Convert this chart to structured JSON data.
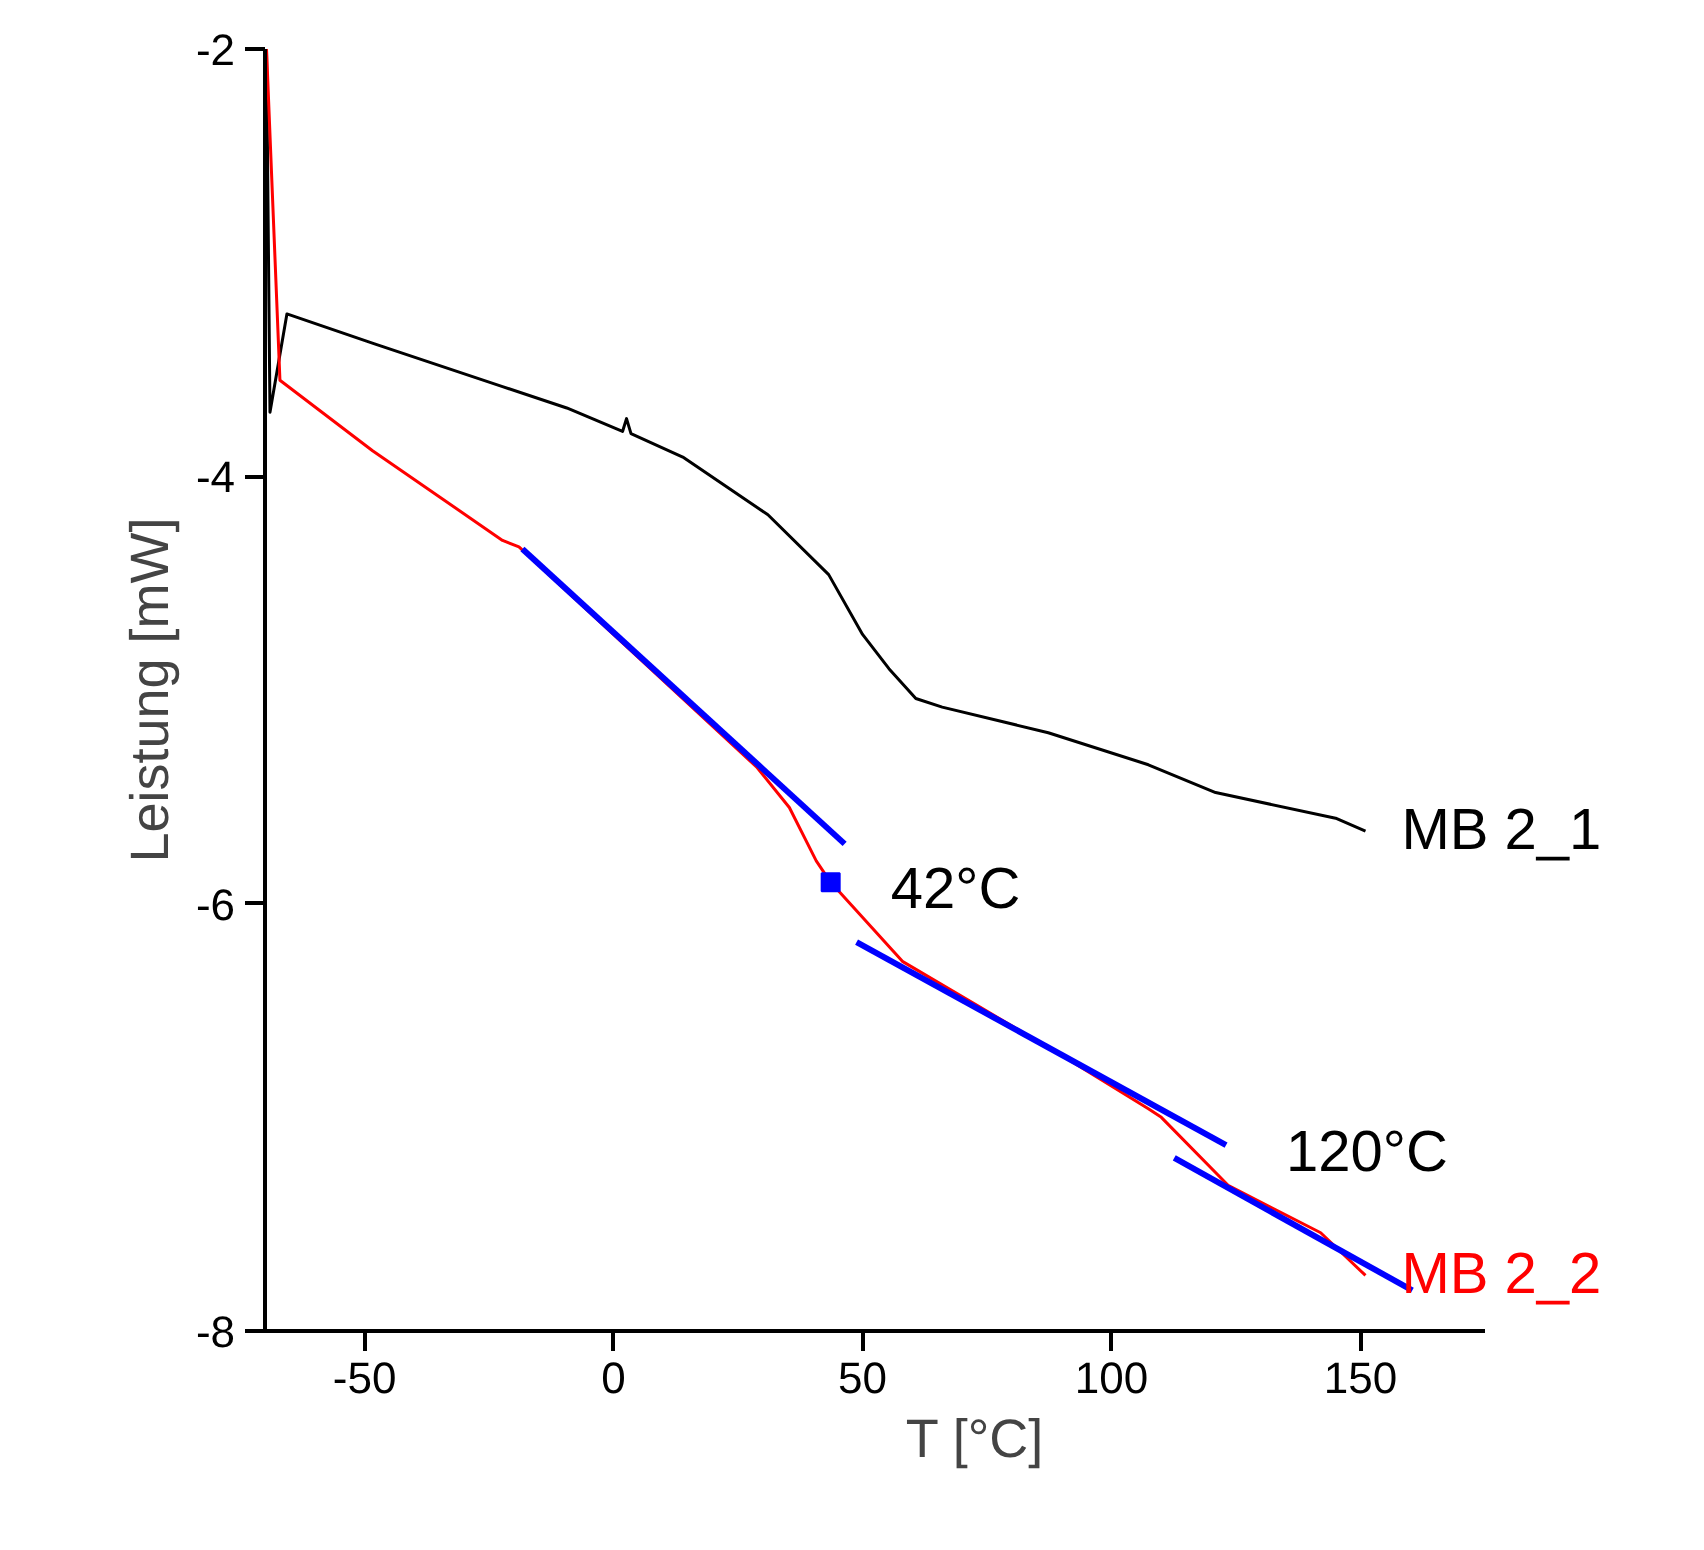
{
  "chart_data": {
    "type": "line",
    "xlabel": "T [°C]",
    "ylabel": "Leistung [mW]",
    "xlim": [
      -70,
      175
    ],
    "ylim": [
      -8,
      -2
    ],
    "xticks": [
      -50,
      0,
      50,
      100,
      150
    ],
    "yticks": [
      -8,
      -6,
      -4,
      -2
    ],
    "grid": false,
    "legend": false,
    "series": [
      {
        "name": "MB 2_1",
        "color": "#000000",
        "x": [
          -69.7,
          -69,
          -65.6,
          -48,
          -22.3,
          -9.4,
          1.8,
          2.6,
          3.5,
          13.9,
          31,
          43.2,
          50,
          55.3,
          60.7,
          66,
          87.3,
          107.4,
          120.9,
          145,
          151
        ],
        "values": [
          -2,
          -3.7,
          -3.24,
          -3.38,
          -3.58,
          -3.68,
          -3.79,
          -3.73,
          -3.8,
          -3.91,
          -4.18,
          -4.46,
          -4.74,
          -4.9,
          -5.04,
          -5.08,
          -5.2,
          -5.35,
          -5.48,
          -5.6,
          -5.66
        ]
      },
      {
        "name": "MB 2_2",
        "color": "#ff0000",
        "x": [
          -69.7,
          -67,
          -48.4,
          -22.3,
          -19,
          28.7,
          35.3,
          40.7,
          43.6,
          58,
          74,
          90,
          107.4,
          110,
          123.5,
          142,
          151
        ],
        "values": [
          -2,
          -3.55,
          -3.88,
          -4.3,
          -4.33,
          -5.36,
          -5.55,
          -5.8,
          -5.9,
          -6.27,
          -6.49,
          -6.71,
          -6.96,
          -7.0,
          -7.32,
          -7.54,
          -7.74
        ]
      },
      {
        "color": "#0000ff",
        "x": [
          -18.3,
          46.4
        ],
        "values": [
          -4.34,
          -5.72
        ]
      },
      {
        "color": "#0000ff",
        "x": [
          48.8,
          123
        ],
        "values": [
          -6.18,
          -7.13
        ]
      },
      {
        "color": "#0000ff",
        "x": [
          112.6,
          160.4
        ],
        "values": [
          -7.19,
          -7.81
        ]
      },
      {
        "type": "scatter",
        "marker": "square",
        "color": "#0000ff",
        "x": [
          43.6
        ],
        "values": [
          -5.9
        ]
      }
    ],
    "annotations": [
      {
        "text": "42°C",
        "x": 43.6,
        "y": -5.9
      },
      {
        "text": "120°C",
        "x": 123,
        "y": -7.13
      }
    ]
  }
}
